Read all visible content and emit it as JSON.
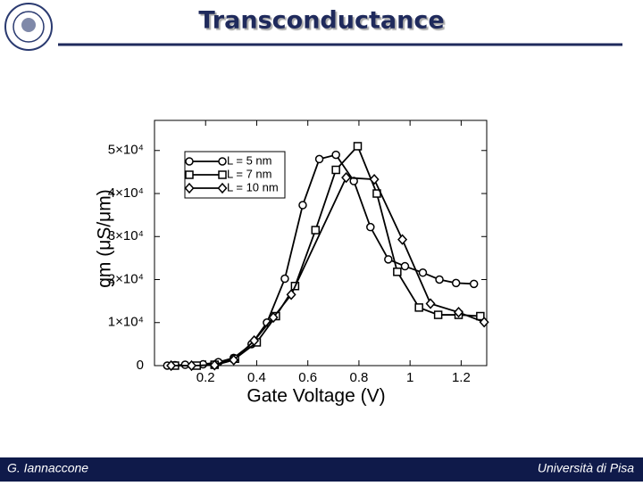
{
  "slide": {
    "title": "Transconductance",
    "footer_left": "G. Iannaccone",
    "footer_right": "Università di Pisa"
  },
  "chart_data": {
    "type": "line",
    "xlabel": "Gate Voltage (V)",
    "ylabel": "gm (μS/μm)",
    "xlim": [
      0,
      1.3
    ],
    "ylim": [
      0,
      57000
    ],
    "xticks": [
      0.2,
      0.4,
      0.6,
      0.8,
      1,
      1.2
    ],
    "yticks": [
      0,
      {
        "value": 10000,
        "label": "1×10⁴"
      },
      {
        "value": 20000,
        "label": "2×10⁴"
      },
      {
        "value": 30000,
        "label": "3×10⁴"
      },
      {
        "value": 40000,
        "label": "4×10⁴"
      },
      {
        "value": 50000,
        "label": "5×10⁴"
      }
    ],
    "legend": "upper-left",
    "series": [
      {
        "name": "L = 5 nm",
        "color": "#000000",
        "marker": "circle",
        "x": [
          0.05,
          0.08,
          0.12,
          0.19,
          0.25,
          0.31,
          0.38,
          0.44,
          0.51,
          0.58,
          0.645,
          0.71,
          0.78,
          0.845,
          0.915,
          0.98,
          1.05,
          1.115,
          1.18,
          1.25
        ],
        "values": [
          0,
          100,
          200,
          300,
          800,
          1800,
          5000,
          10000,
          20200,
          37300,
          48000,
          49000,
          42900,
          32200,
          24700,
          23100,
          21600,
          20000,
          19200,
          19000
        ]
      },
      {
        "name": "L = 7 nm",
        "color": "#000000",
        "marker": "square",
        "x": [
          0.08,
          0.165,
          0.235,
          0.315,
          0.4,
          0.475,
          0.55,
          0.63,
          0.71,
          0.795,
          0.87,
          0.95,
          1.035,
          1.11,
          1.19,
          1.275
        ],
        "values": [
          0,
          0,
          200,
          1600,
          5400,
          11500,
          18500,
          31500,
          45500,
          51000,
          40000,
          21800,
          13500,
          11800,
          11800,
          11500
        ]
      },
      {
        "name": "L = 10 nm",
        "color": "#000000",
        "marker": "diamond",
        "x": [
          0.065,
          0.145,
          0.235,
          0.31,
          0.39,
          0.465,
          0.535,
          0.75,
          0.86,
          0.97,
          1.08,
          1.19,
          1.29
        ],
        "values": [
          0,
          0,
          100,
          1300,
          5800,
          11200,
          16500,
          43700,
          43300,
          29300,
          14400,
          12400,
          10100
        ]
      }
    ]
  }
}
